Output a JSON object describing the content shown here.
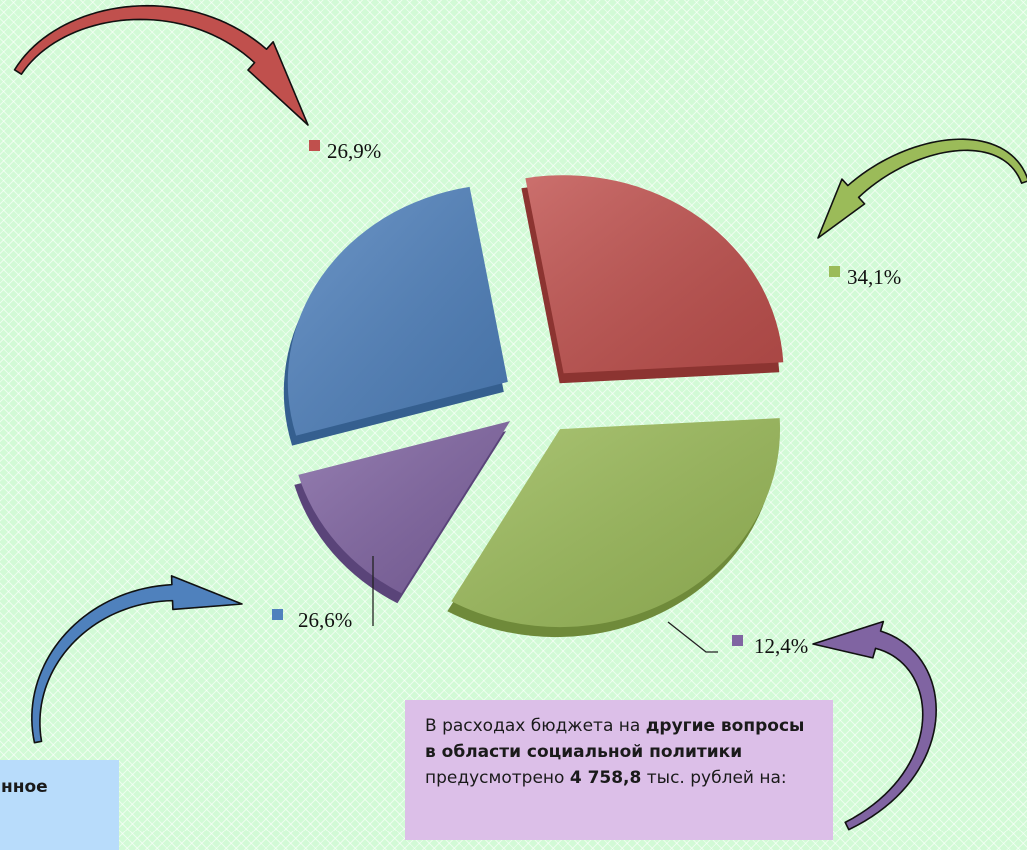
{
  "chart_data": {
    "type": "pie",
    "title": "",
    "slices": [
      {
        "label": "26,9%",
        "value": 26.9,
        "color": "#c0504d",
        "side": "#8c3431"
      },
      {
        "label": "34,1%",
        "value": 34.1,
        "color": "#9bbb59",
        "side": "#6f8a3a"
      },
      {
        "label": "12,4%",
        "value": 12.4,
        "color": "#8064a2",
        "side": "#5a4479"
      },
      {
        "label": "26,6%",
        "value": 26.6,
        "color": "#4f81bd",
        "side": "#355f8f"
      }
    ]
  },
  "notes": {
    "right": {
      "p1": "В расходах бюджета на ",
      "p2": "другие вопросы в области социальной политики",
      "p3": " предусмотрено ",
      "p4": "4 758,8",
      "p5": " тыс. рублей на:"
    },
    "left": {
      "text": "нное"
    }
  }
}
